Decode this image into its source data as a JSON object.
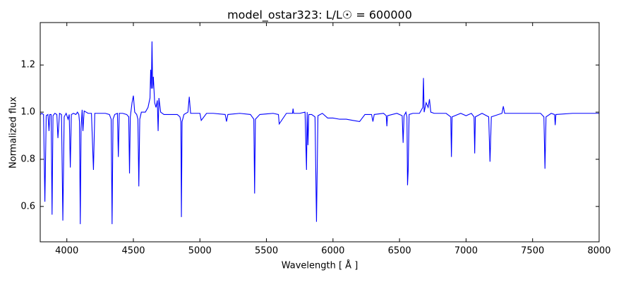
{
  "chart_data": {
    "type": "line",
    "title": "model_ostar323: L/L☉ = 600000",
    "x_label": "Wavelength [ Å ]",
    "y_label": "Normalized flux",
    "xlim": [
      3800,
      8000
    ],
    "ylim": [
      0.45,
      1.38
    ],
    "xticks": [
      4000,
      4500,
      5000,
      5500,
      6000,
      6500,
      7000,
      7500,
      8000
    ],
    "yticks": [
      0.6,
      0.8,
      {
        "value": 1,
        "label": "1.0"
      },
      1.2
    ],
    "series": [
      {
        "name": "model_ostar323",
        "color": "#0000ff",
        "x": [
          3800,
          3812,
          3825,
          3835,
          3845,
          3858,
          3866,
          3872,
          3882,
          3889,
          3896,
          3910,
          3925,
          3933,
          3945,
          3960,
          3970,
          3980,
          3995,
          4009,
          4018,
          4026,
          4034,
          4050,
          4068,
          4080,
          4090,
          4095,
          4101,
          4107,
          4115,
          4121,
          4130,
          4145,
          4160,
          4185,
          4200,
          4210,
          4240,
          4290,
          4320,
          4333,
          4340,
          4347,
          4360,
          4380,
          4387,
          4394,
          4420,
          4450,
          4465,
          4471,
          4477,
          4490,
          4500,
          4510,
          4525,
          4534,
          4541,
          4548,
          4560,
          4590,
          4610,
          4625,
          4630,
          4635,
          4640,
          4645,
          4650,
          4660,
          4670,
          4680,
          4686,
          4692,
          4705,
          4730,
          4780,
          4830,
          4850,
          4857,
          4861,
          4866,
          4880,
          4910,
          4920,
          4930,
          4960,
          5000,
          5010,
          5050,
          5100,
          5190,
          5200,
          5210,
          5300,
          5380,
          5405,
          5411,
          5417,
          5450,
          5550,
          5590,
          5596,
          5650,
          5696,
          5700,
          5704,
          5750,
          5790,
          5801,
          5806,
          5812,
          5818,
          5840,
          5865,
          5876,
          5887,
          5920,
          5960,
          6000,
          6050,
          6100,
          6150,
          6200,
          6240,
          6290,
          6300,
          6310,
          6380,
          6400,
          6405,
          6410,
          6480,
          6520,
          6527,
          6534,
          6548,
          6556,
          6560,
          6565,
          6572,
          6600,
          6650,
          6675,
          6680,
          6685,
          6700,
          6715,
          6725,
          6735,
          6760,
          6850,
          6885,
          6890,
          6895,
          6960,
          7000,
          7040,
          7060,
          7065,
          7070,
          7120,
          7170,
          7180,
          7190,
          7270,
          7280,
          7290,
          7400,
          7560,
          7585,
          7593,
          7601,
          7640,
          7665,
          7670,
          7675,
          7800,
          8000
        ],
        "values": [
          0.99,
          0.995,
          0.99,
          0.62,
          0.985,
          0.99,
          0.92,
          0.99,
          0.99,
          0.565,
          0.985,
          0.995,
          0.99,
          0.89,
          0.995,
          0.99,
          0.54,
          0.98,
          0.995,
          0.97,
          0.99,
          0.765,
          0.99,
          0.995,
          0.99,
          1.0,
          0.99,
          0.96,
          0.525,
          0.93,
          1.01,
          0.92,
          1.005,
          1.0,
          0.995,
          0.995,
          0.755,
          0.995,
          0.995,
          0.995,
          0.99,
          0.97,
          0.525,
          0.97,
          0.99,
          0.995,
          0.81,
          0.995,
          0.995,
          0.99,
          0.98,
          0.74,
          0.98,
          1.04,
          1.07,
          1.0,
          0.99,
          0.97,
          0.685,
          0.97,
          1.0,
          1.0,
          1.02,
          1.06,
          1.18,
          1.1,
          1.3,
          1.1,
          1.15,
          1.04,
          1.02,
          1.05,
          0.92,
          1.06,
          1.0,
          0.99,
          0.99,
          0.99,
          0.98,
          0.96,
          0.555,
          0.96,
          0.99,
          1.0,
          1.065,
          0.995,
          0.995,
          0.995,
          0.965,
          0.995,
          0.995,
          0.99,
          0.96,
          0.99,
          0.995,
          0.99,
          0.97,
          0.655,
          0.97,
          0.99,
          0.995,
          0.99,
          0.95,
          0.995,
          0.995,
          1.015,
          0.995,
          0.995,
          1.0,
          0.755,
          1.0,
          0.86,
          0.99,
          0.99,
          0.98,
          0.535,
          0.985,
          0.995,
          0.975,
          0.975,
          0.97,
          0.97,
          0.965,
          0.96,
          0.99,
          0.99,
          0.96,
          0.99,
          0.995,
          0.985,
          0.94,
          0.985,
          0.995,
          0.985,
          0.87,
          0.985,
          1.0,
          0.98,
          0.69,
          0.75,
          0.99,
          0.995,
          0.995,
          1.02,
          1.145,
          1.0,
          1.04,
          1.02,
          1.055,
          1.0,
          0.995,
          0.995,
          0.98,
          0.81,
          0.98,
          0.995,
          0.985,
          0.995,
          0.98,
          0.825,
          0.98,
          0.995,
          0.98,
          0.79,
          0.98,
          0.995,
          1.025,
          0.995,
          0.995,
          0.995,
          0.98,
          0.76,
          0.98,
          0.995,
          0.99,
          0.945,
          0.99,
          0.995,
          0.995
        ]
      }
    ]
  }
}
